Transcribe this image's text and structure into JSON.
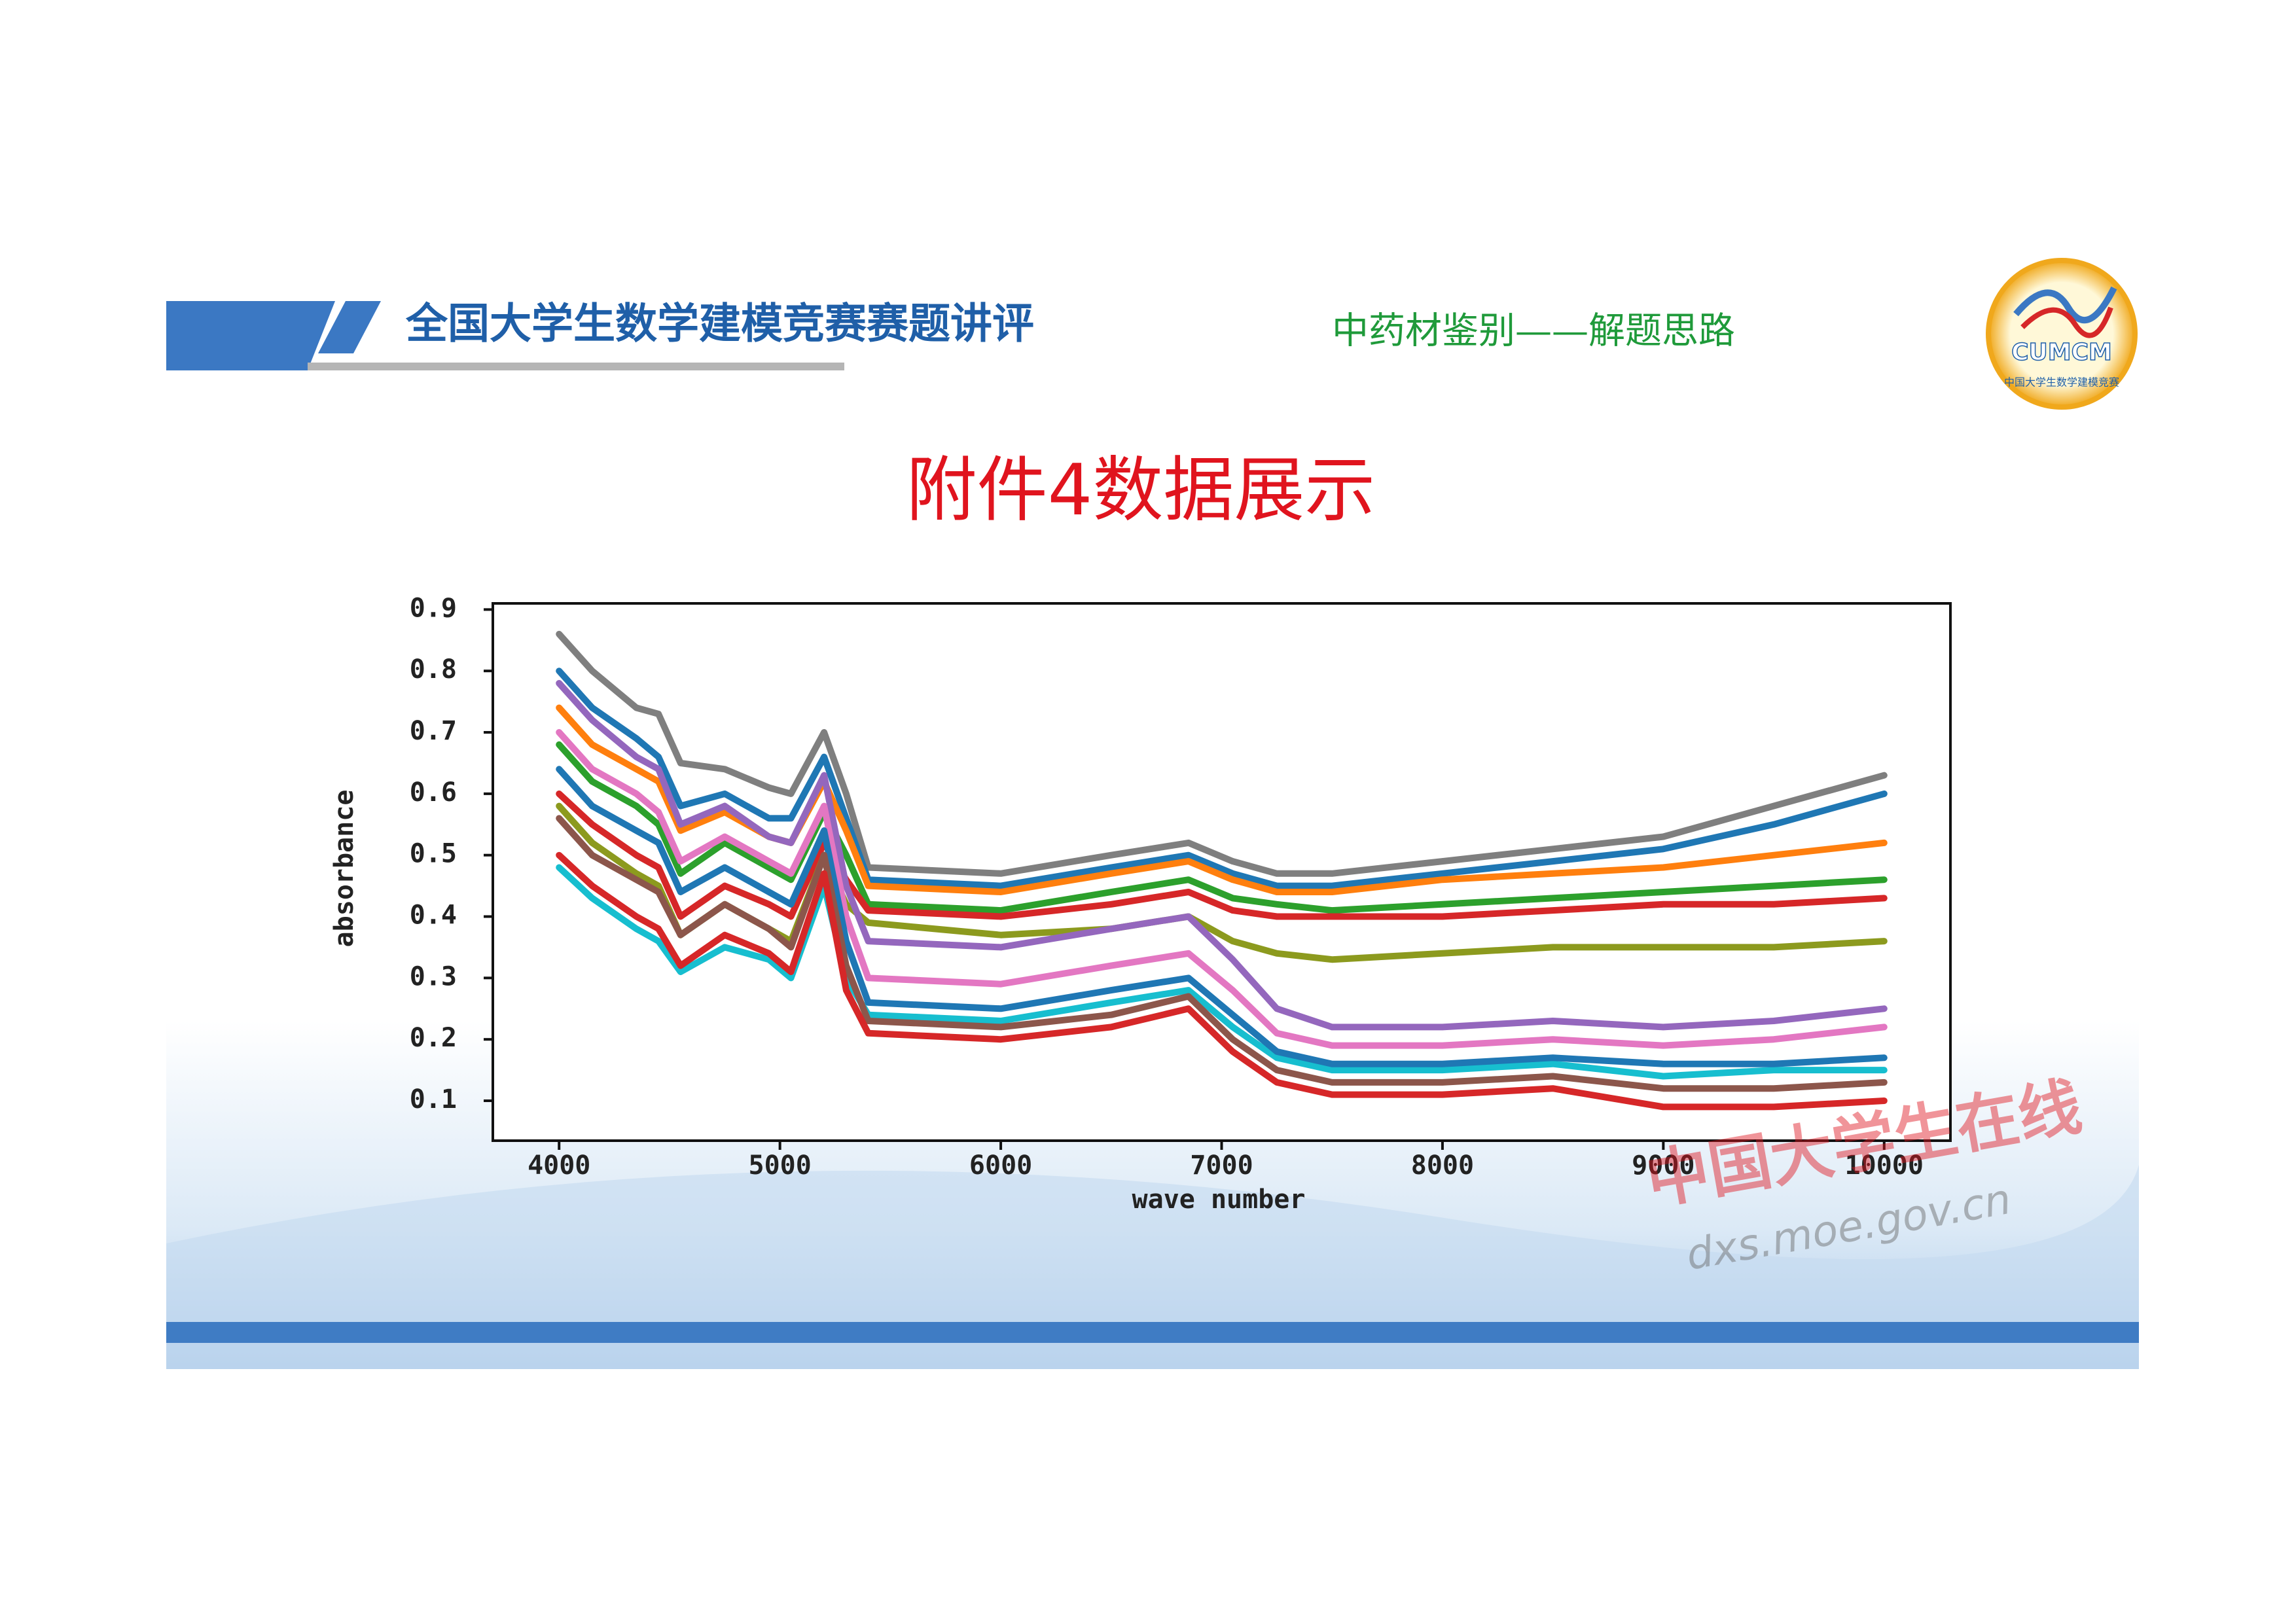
{
  "header": {
    "title": "全国大学生数学建模竞赛赛题讲评",
    "subtitle": "中药材鉴别——解题思路"
  },
  "logo": {
    "text": "CUMCM",
    "caption": "中国大学生数学建模竞赛"
  },
  "slide_title": "附件4数据展示",
  "watermark": {
    "name": "中国大学生在线",
    "url": "dxs.moe.gov.cn"
  },
  "chart_data": {
    "type": "line",
    "xlabel": "wave number",
    "ylabel": "absorbance",
    "x": [
      4000,
      4150,
      4350,
      4450,
      4550,
      4750,
      4950,
      5050,
      5200,
      5300,
      5400,
      6000,
      6500,
      6850,
      7050,
      7250,
      7500,
      8000,
      8500,
      9000,
      9500,
      10000
    ],
    "xlim": [
      3700,
      10300
    ],
    "xticks": [
      4000,
      5000,
      6000,
      7000,
      8000,
      9000,
      10000
    ],
    "ylim": [
      0.035,
      0.91
    ],
    "yticks": [
      0.1,
      0.2,
      0.3,
      0.4,
      0.5,
      0.6,
      0.7,
      0.8,
      0.9
    ],
    "series": [
      {
        "color": "#7f7f7f",
        "values": [
          0.86,
          0.8,
          0.74,
          0.73,
          0.65,
          0.64,
          0.61,
          0.6,
          0.7,
          0.6,
          0.48,
          0.47,
          0.5,
          0.52,
          0.49,
          0.47,
          0.47,
          0.49,
          0.51,
          0.53,
          0.58,
          0.63
        ]
      },
      {
        "color": "#1f77b4",
        "values": [
          0.8,
          0.74,
          0.69,
          0.66,
          0.58,
          0.6,
          0.56,
          0.56,
          0.66,
          0.56,
          0.46,
          0.45,
          0.48,
          0.5,
          0.47,
          0.45,
          0.45,
          0.47,
          0.49,
          0.51,
          0.55,
          0.6
        ]
      },
      {
        "color": "#ff7f0e",
        "values": [
          0.74,
          0.68,
          0.64,
          0.62,
          0.54,
          0.57,
          0.53,
          0.52,
          0.62,
          0.54,
          0.45,
          0.44,
          0.47,
          0.49,
          0.46,
          0.44,
          0.44,
          0.46,
          0.47,
          0.48,
          0.5,
          0.52
        ]
      },
      {
        "color": "#2ca02c",
        "values": [
          0.68,
          0.62,
          0.58,
          0.55,
          0.47,
          0.52,
          0.48,
          0.46,
          0.57,
          0.5,
          0.42,
          0.41,
          0.44,
          0.46,
          0.43,
          0.42,
          0.41,
          0.42,
          0.43,
          0.44,
          0.45,
          0.46
        ]
      },
      {
        "color": "#d62728",
        "values": [
          0.6,
          0.55,
          0.5,
          0.48,
          0.4,
          0.45,
          0.42,
          0.4,
          0.52,
          0.46,
          0.41,
          0.4,
          0.42,
          0.44,
          0.41,
          0.4,
          0.4,
          0.4,
          0.41,
          0.42,
          0.42,
          0.43
        ]
      },
      {
        "color": "#8c9a1e",
        "values": [
          0.58,
          0.52,
          0.47,
          0.45,
          0.37,
          0.42,
          0.38,
          0.36,
          0.5,
          0.42,
          0.39,
          0.37,
          0.38,
          0.4,
          0.36,
          0.34,
          0.33,
          0.34,
          0.35,
          0.35,
          0.35,
          0.36
        ]
      },
      {
        "color": "#9467bd",
        "values": [
          0.78,
          0.72,
          0.66,
          0.64,
          0.55,
          0.58,
          0.53,
          0.52,
          0.63,
          0.45,
          0.36,
          0.35,
          0.38,
          0.4,
          0.33,
          0.25,
          0.22,
          0.22,
          0.23,
          0.22,
          0.23,
          0.25
        ]
      },
      {
        "color": "#e377c2",
        "values": [
          0.7,
          0.64,
          0.6,
          0.57,
          0.49,
          0.53,
          0.49,
          0.47,
          0.58,
          0.4,
          0.3,
          0.29,
          0.32,
          0.34,
          0.28,
          0.21,
          0.19,
          0.19,
          0.2,
          0.19,
          0.2,
          0.22
        ]
      },
      {
        "color": "#17becf",
        "values": [
          0.48,
          0.43,
          0.38,
          0.36,
          0.31,
          0.35,
          0.33,
          0.3,
          0.45,
          0.3,
          0.24,
          0.23,
          0.26,
          0.28,
          0.22,
          0.17,
          0.15,
          0.15,
          0.16,
          0.14,
          0.15,
          0.15
        ]
      },
      {
        "color": "#1f77b4",
        "values": [
          0.64,
          0.58,
          0.54,
          0.52,
          0.44,
          0.48,
          0.44,
          0.42,
          0.54,
          0.36,
          0.26,
          0.25,
          0.28,
          0.3,
          0.24,
          0.18,
          0.16,
          0.16,
          0.17,
          0.16,
          0.16,
          0.17
        ]
      },
      {
        "color": "#8c564b",
        "values": [
          0.56,
          0.5,
          0.46,
          0.44,
          0.37,
          0.42,
          0.38,
          0.35,
          0.5,
          0.32,
          0.23,
          0.22,
          0.24,
          0.27,
          0.2,
          0.15,
          0.13,
          0.13,
          0.14,
          0.12,
          0.12,
          0.13
        ]
      },
      {
        "color": "#d62728",
        "values": [
          0.5,
          0.45,
          0.4,
          0.38,
          0.32,
          0.37,
          0.34,
          0.31,
          0.47,
          0.28,
          0.21,
          0.2,
          0.22,
          0.25,
          0.18,
          0.13,
          0.11,
          0.11,
          0.12,
          0.09,
          0.09,
          0.1
        ]
      }
    ]
  }
}
